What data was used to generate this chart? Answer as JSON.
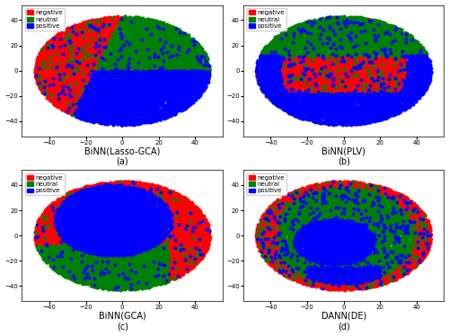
{
  "subplots": [
    {
      "title": "BiNN(Lasso-GCA)",
      "label": "(a)"
    },
    {
      "title": "BiNN(PLV)",
      "label": "(b)"
    },
    {
      "title": "BiNN(GCA)",
      "label": "(c)"
    },
    {
      "title": "DANN(DE)",
      "label": "(d)"
    }
  ],
  "classes": [
    "negative",
    "neutral",
    "positive"
  ],
  "colors": [
    "#ff0000",
    "#008000",
    "#0000ff"
  ],
  "xlim": [
    -55,
    55
  ],
  "ylim": [
    -52,
    52
  ],
  "n_points": 12000,
  "dot_size": 8,
  "figsize": [
    5.0,
    3.74
  ],
  "dpi": 100,
  "tick_labels": [
    -40,
    -20,
    0,
    20,
    40
  ],
  "legend_fontsize": 5,
  "xlabel_fontsize": 7,
  "tick_fontsize": 5
}
